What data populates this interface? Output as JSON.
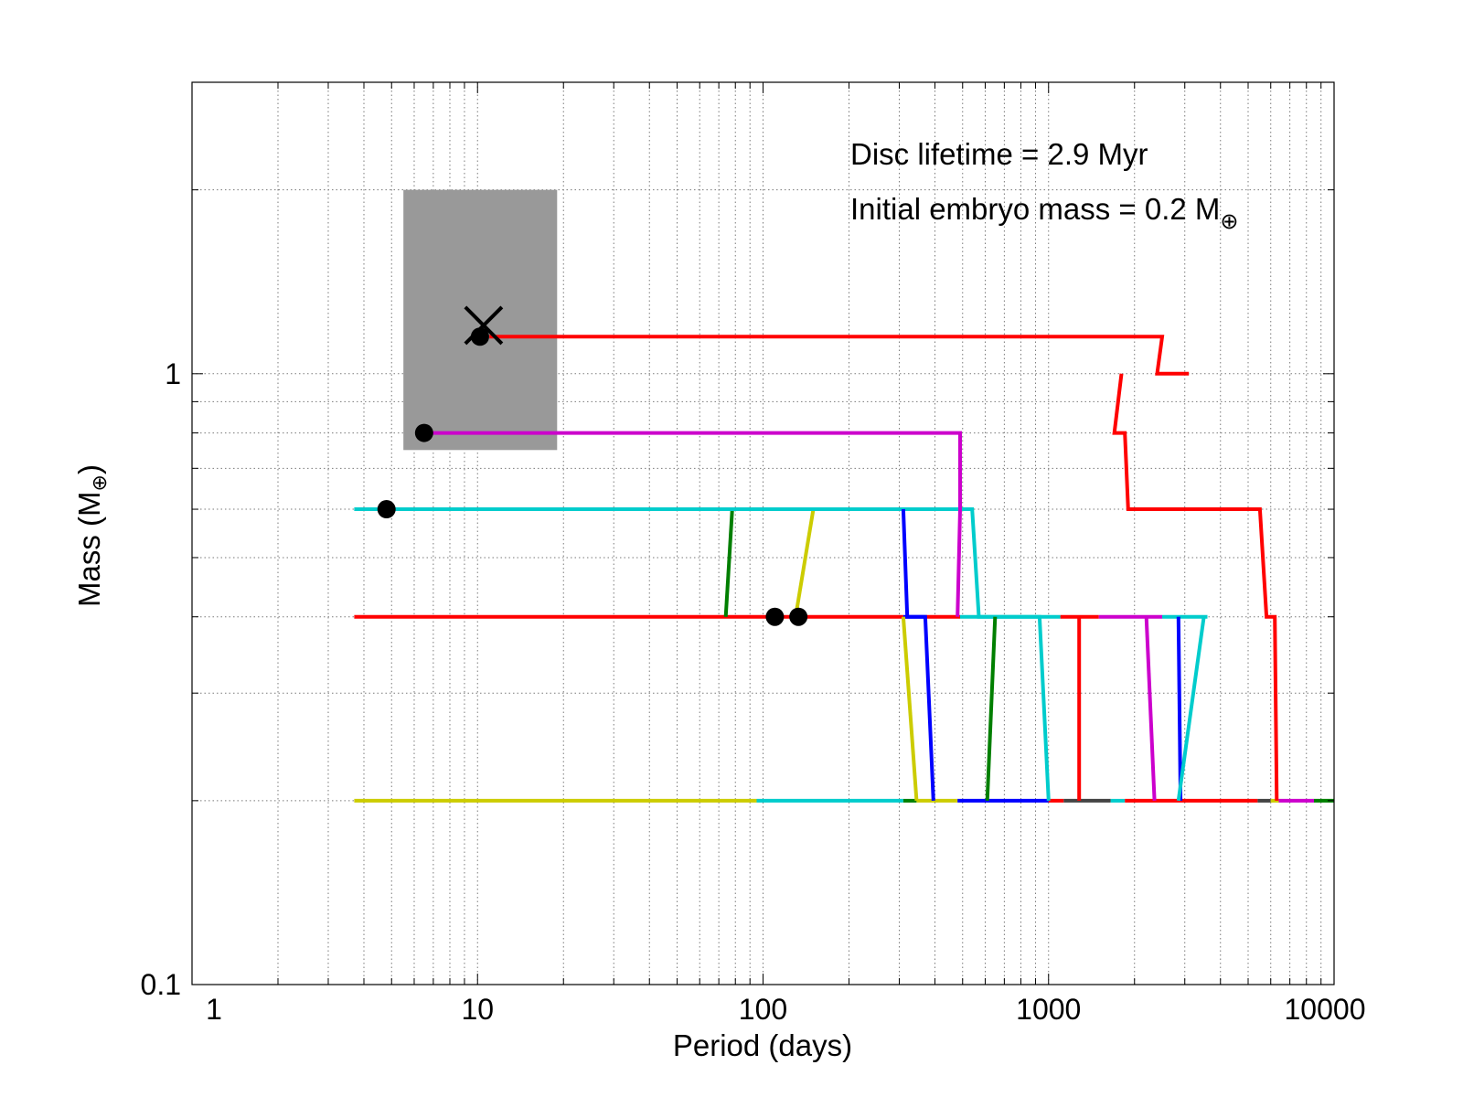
{
  "chart_data": {
    "type": "line",
    "xscale": "log",
    "yscale": "log",
    "xlim": [
      1,
      10000
    ],
    "ylim": [
      0.1,
      3
    ],
    "grid": true,
    "xlabel": "Period (days)",
    "ylabel": "Mass (M",
    "ylabel_sub": "⊕",
    "ylabel_close": ")",
    "xticks": [
      1,
      10,
      100,
      1000,
      10000
    ],
    "xtick_labels": [
      "1",
      "10",
      "100",
      "1000",
      "10000"
    ],
    "yticks": [
      0.1,
      1
    ],
    "ytick_labels": [
      "0.1",
      "1"
    ],
    "annotations": {
      "disc_lifetime": "Disc lifetime = 2.9 Myr",
      "embryo_mass": "Initial embryo mass = 0.2 M",
      "embryo_mass_sub": "⊕"
    },
    "shaded_region": {
      "x": [
        5.5,
        19
      ],
      "y": [
        0.75,
        2.0
      ],
      "color": "#999999"
    },
    "observed_planet_marker": {
      "x": 10.5,
      "y": 1.2,
      "symbol": "x"
    },
    "final_planets": [
      {
        "x": 10.2,
        "y": 1.15
      },
      {
        "x": 6.5,
        "y": 0.8
      },
      {
        "x": 4.8,
        "y": 0.6
      },
      {
        "x": 110,
        "y": 0.4
      },
      {
        "x": 133,
        "y": 0.4
      }
    ],
    "series": [
      {
        "color": "#cccc00",
        "points": [
          [
            3.7,
            0.2
          ],
          [
            95,
            0.2
          ]
        ]
      },
      {
        "color": "#00cccc",
        "points": [
          [
            95,
            0.2
          ],
          [
            310,
            0.2
          ]
        ]
      },
      {
        "color": "#007f00",
        "points": [
          [
            310,
            0.2
          ],
          [
            345,
            0.2
          ]
        ]
      },
      {
        "color": "#cccc00",
        "points": [
          [
            345,
            0.2
          ],
          [
            480,
            0.2
          ]
        ]
      },
      {
        "color": "#0000ff",
        "points": [
          [
            480,
            0.2
          ],
          [
            1000,
            0.2
          ]
        ]
      },
      {
        "color": "#ff0000",
        "points": [
          [
            1000,
            0.2
          ],
          [
            1130,
            0.2
          ]
        ]
      },
      {
        "color": "#444444",
        "points": [
          [
            1130,
            0.2
          ],
          [
            1650,
            0.2
          ]
        ]
      },
      {
        "color": "#00cccc",
        "points": [
          [
            1650,
            0.2
          ],
          [
            1850,
            0.2
          ]
        ]
      },
      {
        "color": "#ff0000",
        "points": [
          [
            1850,
            0.2
          ],
          [
            5400,
            0.2
          ]
        ]
      },
      {
        "color": "#444444",
        "points": [
          [
            5400,
            0.2
          ],
          [
            6000,
            0.2
          ]
        ]
      },
      {
        "color": "#cccc00",
        "points": [
          [
            6000,
            0.2
          ],
          [
            6400,
            0.2
          ]
        ]
      },
      {
        "color": "#cc00cc",
        "points": [
          [
            6400,
            0.2
          ],
          [
            8500,
            0.2
          ]
        ]
      },
      {
        "color": "#007f00",
        "points": [
          [
            8500,
            0.2
          ],
          [
            10000,
            0.2
          ]
        ]
      },
      {
        "color": "#ff0000",
        "points": [
          [
            3.7,
            0.4
          ],
          [
            310,
            0.4
          ]
        ]
      },
      {
        "color": "#0000ff",
        "points": [
          [
            310,
            0.4
          ],
          [
            370,
            0.4
          ]
        ]
      },
      {
        "color": "#ff0000",
        "points": [
          [
            370,
            0.4
          ],
          [
            490,
            0.4
          ]
        ]
      },
      {
        "color": "#00cccc",
        "points": [
          [
            490,
            0.4
          ],
          [
            1100,
            0.4
          ]
        ]
      },
      {
        "color": "#ff0000",
        "points": [
          [
            1100,
            0.4
          ],
          [
            1500,
            0.4
          ]
        ]
      },
      {
        "color": "#cc00cc",
        "points": [
          [
            1500,
            0.4
          ],
          [
            2500,
            0.4
          ]
        ]
      },
      {
        "color": "#00cccc",
        "points": [
          [
            2500,
            0.4
          ],
          [
            3600,
            0.4
          ]
        ]
      },
      {
        "color": "#007f00",
        "points": [
          [
            74,
            0.4
          ],
          [
            78,
            0.6
          ]
        ]
      },
      {
        "color": "#cccc00",
        "points": [
          [
            130,
            0.4
          ],
          [
            150,
            0.6
          ]
        ]
      },
      {
        "color": "#00cccc",
        "points": [
          [
            3.7,
            0.6
          ],
          [
            540,
            0.6
          ],
          [
            570,
            0.4
          ],
          [
            930,
            0.4
          ],
          [
            1000,
            0.2
          ]
        ]
      },
      {
        "color": "#0000ff",
        "points": [
          [
            310,
            0.6
          ],
          [
            320,
            0.4
          ],
          [
            370,
            0.4
          ],
          [
            395,
            0.2
          ]
        ]
      },
      {
        "color": "#cccc00",
        "points": [
          [
            310,
            0.4
          ],
          [
            345,
            0.2
          ]
        ]
      },
      {
        "color": "#007f00",
        "points": [
          [
            650,
            0.4
          ],
          [
            610,
            0.2
          ]
        ]
      },
      {
        "color": "#ff0000",
        "points": [
          [
            1280,
            0.4
          ],
          [
            1280,
            0.2
          ]
        ]
      },
      {
        "color": "#cc00cc",
        "points": [
          [
            2200,
            0.4
          ],
          [
            2350,
            0.2
          ]
        ]
      },
      {
        "color": "#0000ff",
        "points": [
          [
            2850,
            0.4
          ],
          [
            2900,
            0.2
          ]
        ]
      },
      {
        "color": "#00cccc",
        "points": [
          [
            3500,
            0.4
          ],
          [
            2850,
            0.2
          ]
        ]
      },
      {
        "color": "#cc00cc",
        "points": [
          [
            6.5,
            0.8
          ],
          [
            490,
            0.8
          ],
          [
            490,
            0.6
          ],
          [
            480,
            0.4
          ]
        ]
      },
      {
        "color": "#ff0000",
        "points": [
          [
            11,
            1.15
          ],
          [
            2500,
            1.15
          ],
          [
            2400,
            1.0
          ],
          [
            3100,
            1.0
          ]
        ]
      },
      {
        "color": "#ff0000",
        "points": [
          [
            1800,
            1.0
          ],
          [
            1700,
            0.8
          ],
          [
            1850,
            0.8
          ],
          [
            1900,
            0.6
          ],
          [
            5500,
            0.6
          ],
          [
            5800,
            0.4
          ],
          [
            6200,
            0.4
          ],
          [
            6300,
            0.2
          ]
        ]
      }
    ]
  }
}
